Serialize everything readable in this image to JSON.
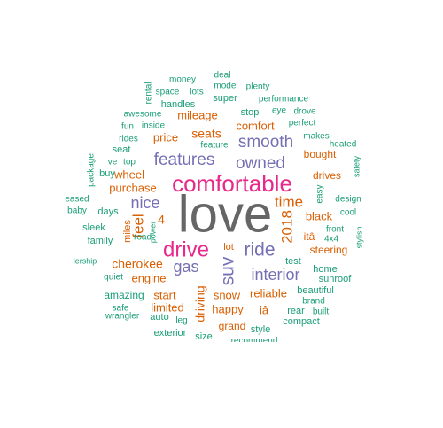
{
  "palette": {
    "teal": "#1b9e77",
    "orange": "#d95f02",
    "purple": "#7570b3",
    "magenta": "#e7298a",
    "gray": "#666666"
  },
  "cloud": {
    "words": [
      {
        "id": "love",
        "text": "love",
        "color": "gray"
      },
      {
        "id": "comfortable",
        "text": "comfortable",
        "color": "magenta"
      },
      {
        "id": "drive",
        "text": "drive",
        "color": "magenta"
      },
      {
        "id": "features",
        "text": "features",
        "color": "purple"
      },
      {
        "id": "owned",
        "text": "owned",
        "color": "purple"
      },
      {
        "id": "smooth",
        "text": "smooth",
        "color": "purple"
      },
      {
        "id": "ride",
        "text": "ride",
        "color": "purple"
      },
      {
        "id": "interior",
        "text": "interior",
        "color": "purple"
      },
      {
        "id": "suv",
        "text": "suv",
        "color": "purple"
      },
      {
        "id": "gas",
        "text": "gas",
        "color": "purple"
      },
      {
        "id": "nice",
        "text": "nice",
        "color": "purple"
      },
      {
        "id": "time",
        "text": "time",
        "color": "orange"
      },
      {
        "id": "y2018",
        "text": "2018",
        "color": "orange"
      },
      {
        "id": "feel",
        "text": "feel",
        "color": "orange"
      },
      {
        "id": "four",
        "text": "4",
        "color": "orange"
      },
      {
        "id": "seats",
        "text": "seats",
        "color": "orange"
      },
      {
        "id": "comfort",
        "text": "comfort",
        "color": "orange"
      },
      {
        "id": "price",
        "text": "price",
        "color": "orange"
      },
      {
        "id": "mileage",
        "text": "mileage",
        "color": "orange"
      },
      {
        "id": "wheel",
        "text": "wheel",
        "color": "orange"
      },
      {
        "id": "purchase",
        "text": "purchase",
        "color": "orange"
      },
      {
        "id": "cherokee",
        "text": "cherokee",
        "color": "orange"
      },
      {
        "id": "engine",
        "text": "engine",
        "color": "orange"
      },
      {
        "id": "black",
        "text": "black",
        "color": "orange"
      },
      {
        "id": "driving",
        "text": "driving",
        "color": "orange"
      },
      {
        "id": "miles",
        "text": "miles",
        "color": "orange"
      },
      {
        "id": "bought",
        "text": "bought",
        "color": "orange"
      },
      {
        "id": "drives",
        "text": "drives",
        "color": "orange"
      },
      {
        "id": "ita",
        "text": "itâ",
        "color": "orange"
      },
      {
        "id": "steering",
        "text": "steering",
        "color": "orange"
      },
      {
        "id": "start",
        "text": "start",
        "color": "orange"
      },
      {
        "id": "limited",
        "text": "limited",
        "color": "orange"
      },
      {
        "id": "happy",
        "text": "happy",
        "color": "orange"
      },
      {
        "id": "reliable",
        "text": "reliable",
        "color": "orange"
      },
      {
        "id": "snow",
        "text": "snow",
        "color": "orange"
      },
      {
        "id": "ia",
        "text": "iâ",
        "color": "orange"
      },
      {
        "id": "grand",
        "text": "grand",
        "color": "orange"
      },
      {
        "id": "lot",
        "text": "lot",
        "color": "orange"
      },
      {
        "id": "money",
        "text": "money",
        "color": "teal"
      },
      {
        "id": "deal",
        "text": "deal",
        "color": "teal"
      },
      {
        "id": "model",
        "text": "model",
        "color": "teal"
      },
      {
        "id": "plenty",
        "text": "plenty",
        "color": "teal"
      },
      {
        "id": "rental",
        "text": "rental",
        "color": "teal"
      },
      {
        "id": "space",
        "text": "space",
        "color": "teal"
      },
      {
        "id": "lots",
        "text": "lots",
        "color": "teal"
      },
      {
        "id": "super",
        "text": "super",
        "color": "teal"
      },
      {
        "id": "performance",
        "text": "performance",
        "color": "teal"
      },
      {
        "id": "handles",
        "text": "handles",
        "color": "teal"
      },
      {
        "id": "stop",
        "text": "stop",
        "color": "teal"
      },
      {
        "id": "eye",
        "text": "eye",
        "color": "teal"
      },
      {
        "id": "drove",
        "text": "drove",
        "color": "teal"
      },
      {
        "id": "awesome",
        "text": "awesome",
        "color": "teal"
      },
      {
        "id": "perfect",
        "text": "perfect",
        "color": "teal"
      },
      {
        "id": "fun",
        "text": "fun",
        "color": "teal"
      },
      {
        "id": "inside",
        "text": "inside",
        "color": "teal"
      },
      {
        "id": "makes",
        "text": "makes",
        "color": "teal"
      },
      {
        "id": "rides",
        "text": "rides",
        "color": "teal"
      },
      {
        "id": "feature",
        "text": "feature",
        "color": "teal"
      },
      {
        "id": "heated",
        "text": "heated",
        "color": "teal"
      },
      {
        "id": "seat",
        "text": "seat",
        "color": "teal"
      },
      {
        "id": "package",
        "text": "package",
        "color": "teal"
      },
      {
        "id": "ve",
        "text": "ve",
        "color": "teal"
      },
      {
        "id": "top",
        "text": "top",
        "color": "teal"
      },
      {
        "id": "safety",
        "text": "safety",
        "color": "teal"
      },
      {
        "id": "buy",
        "text": "buy",
        "color": "teal"
      },
      {
        "id": "easy",
        "text": "easy",
        "color": "teal"
      },
      {
        "id": "design",
        "text": "design",
        "color": "teal"
      },
      {
        "id": "eased",
        "text": "eased",
        "color": "teal"
      },
      {
        "id": "baby",
        "text": "baby",
        "color": "teal"
      },
      {
        "id": "days",
        "text": "days",
        "color": "teal"
      },
      {
        "id": "cool",
        "text": "cool",
        "color": "teal"
      },
      {
        "id": "sleek",
        "text": "sleek",
        "color": "teal"
      },
      {
        "id": "road",
        "text": "road",
        "color": "teal"
      },
      {
        "id": "power",
        "text": "power",
        "color": "teal"
      },
      {
        "id": "front",
        "text": "front",
        "color": "teal"
      },
      {
        "id": "stylish",
        "text": "stylish",
        "color": "teal"
      },
      {
        "id": "family",
        "text": "family",
        "color": "teal"
      },
      {
        "id": "fourxfour",
        "text": "4x4",
        "color": "teal"
      },
      {
        "id": "test",
        "text": "test",
        "color": "teal"
      },
      {
        "id": "dealership",
        "text": "lership",
        "color": "teal"
      },
      {
        "id": "home",
        "text": "home",
        "color": "teal"
      },
      {
        "id": "quiet",
        "text": "quiet",
        "color": "teal"
      },
      {
        "id": "sunroof",
        "text": "sunroof",
        "color": "teal"
      },
      {
        "id": "amazing",
        "text": "amazing",
        "color": "teal"
      },
      {
        "id": "beautiful",
        "text": "beautiful",
        "color": "teal"
      },
      {
        "id": "brand",
        "text": "brand",
        "color": "teal"
      },
      {
        "id": "safe",
        "text": "safe",
        "color": "teal"
      },
      {
        "id": "rear",
        "text": "rear",
        "color": "teal"
      },
      {
        "id": "built",
        "text": "built",
        "color": "teal"
      },
      {
        "id": "wrangler",
        "text": "wrangler",
        "color": "teal"
      },
      {
        "id": "auto",
        "text": "auto",
        "color": "teal"
      },
      {
        "id": "leg",
        "text": "leg",
        "color": "teal"
      },
      {
        "id": "compact",
        "text": "compact",
        "color": "teal"
      },
      {
        "id": "style",
        "text": "style",
        "color": "teal"
      },
      {
        "id": "exterior",
        "text": "exterior",
        "color": "teal"
      },
      {
        "id": "size",
        "text": "size",
        "color": "teal"
      },
      {
        "id": "recommend",
        "text": "recommend",
        "color": "teal"
      }
    ]
  }
}
